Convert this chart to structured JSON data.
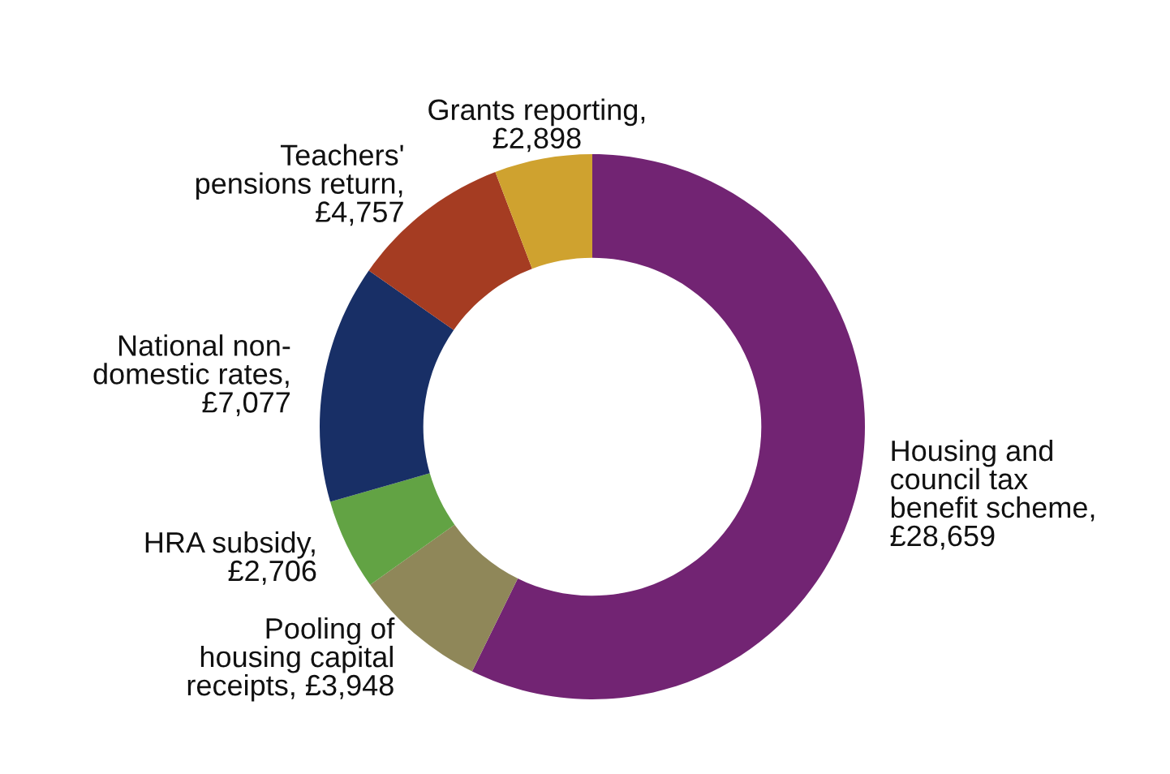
{
  "chart_data": {
    "type": "donut",
    "categories": [
      "Housing and\ncouncil tax\nbenefit scheme,\n£28,659",
      "Pooling of\nhousing capital\nreceipts, £3,948",
      "HRA subsidy,\n£2,706",
      "National non-\ndomestic rates,\n£7,077",
      "Teachers'\npensions return,\n£4,757",
      "Grants reporting,\n£2,898"
    ],
    "values": [
      28659,
      3948,
      2706,
      7077,
      4757,
      2898
    ],
    "colors": [
      "#722473",
      "#8f8759",
      "#62a344",
      "#182f66",
      "#a53c22",
      "#cfa22f"
    ],
    "legend": false
  }
}
